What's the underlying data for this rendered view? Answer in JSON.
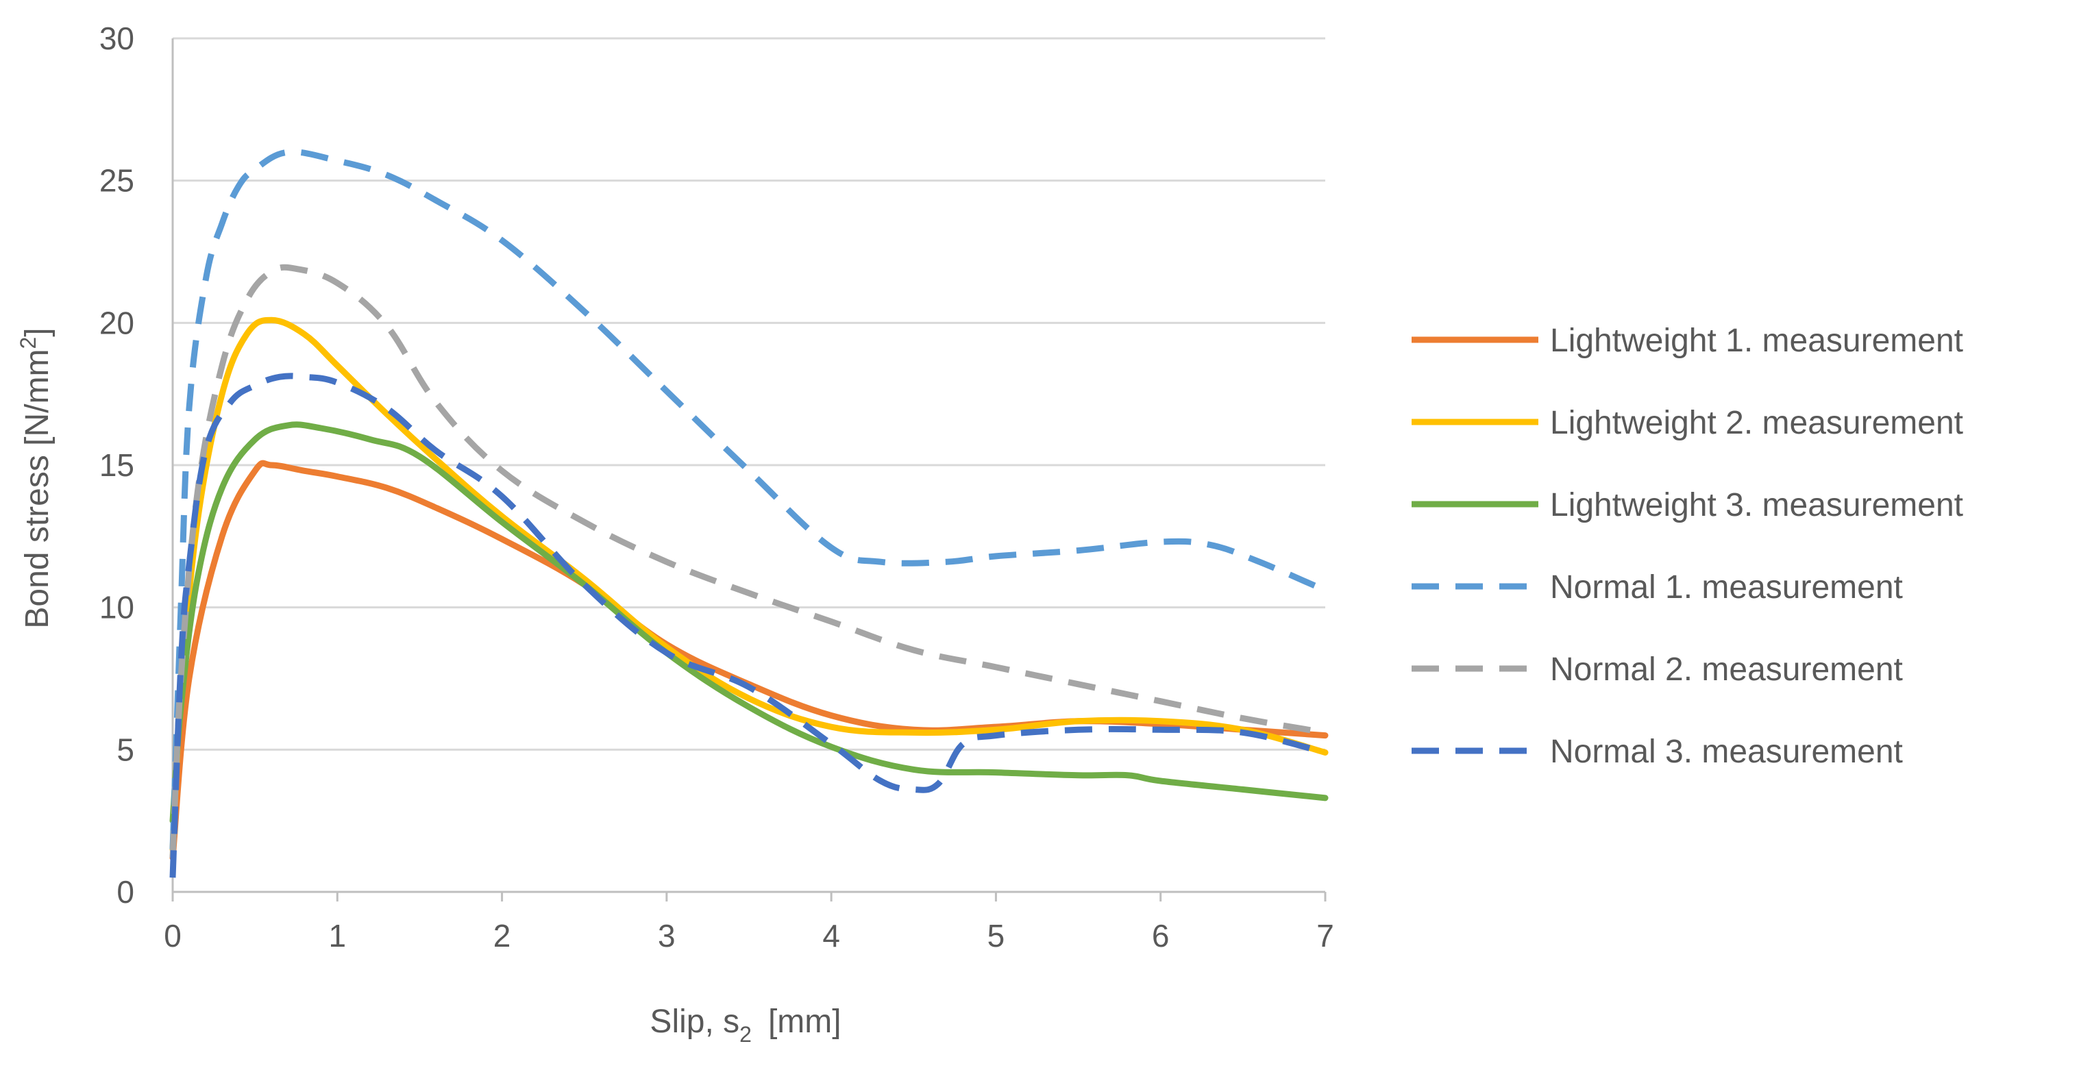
{
  "chart_data": {
    "type": "line",
    "title": "",
    "xlabel_main": "Slip, s",
    "xlabel_sub": "2",
    "xlabel_unit": "[mm]",
    "ylabel_main": "Bond stress [N/mm",
    "ylabel_sup": "2",
    "ylabel_end": "]",
    "xlim": [
      0,
      7
    ],
    "ylim": [
      0,
      30
    ],
    "xticks": [
      "0",
      "1",
      "2",
      "3",
      "4",
      "5",
      "6",
      "7"
    ],
    "yticks": [
      "0",
      "5",
      "10",
      "15",
      "20",
      "25",
      "30"
    ],
    "grid": "horizontal",
    "legend_position": "right",
    "series": [
      {
        "name": "Lightweight 1. measurement",
        "color": "#ED7D31",
        "style": "solid",
        "x": [
          0,
          0.1,
          0.3,
          0.5,
          0.6,
          0.8,
          1.0,
          1.3,
          1.6,
          2.0,
          2.5,
          3.0,
          3.5,
          4.0,
          4.5,
          5.0,
          5.5,
          6.0,
          6.5,
          7.0
        ],
        "y": [
          1.2,
          7.5,
          12.5,
          14.8,
          15.0,
          14.8,
          14.6,
          14.2,
          13.5,
          12.4,
          10.8,
          8.7,
          7.3,
          6.2,
          5.7,
          5.8,
          6.0,
          5.9,
          5.7,
          5.5
        ]
      },
      {
        "name": "Lightweight 2. measurement",
        "color": "#FFC000",
        "style": "solid",
        "x": [
          0,
          0.05,
          0.15,
          0.3,
          0.45,
          0.6,
          0.8,
          1.0,
          1.3,
          1.6,
          2.0,
          2.5,
          3.0,
          3.5,
          4.0,
          4.5,
          5.0,
          5.5,
          6.0,
          6.5,
          7.0
        ],
        "y": [
          1.5,
          7.0,
          13.0,
          17.5,
          19.6,
          20.1,
          19.6,
          18.5,
          16.8,
          15.2,
          13.2,
          11.0,
          8.6,
          6.8,
          5.8,
          5.6,
          5.7,
          6.0,
          6.0,
          5.7,
          4.9
        ]
      },
      {
        "name": "Lightweight 3. measurement",
        "color": "#70AD47",
        "style": "solid",
        "x": [
          0,
          0.05,
          0.15,
          0.3,
          0.5,
          0.7,
          0.9,
          1.2,
          1.5,
          2.0,
          2.5,
          3.0,
          3.5,
          4.0,
          4.5,
          5.0,
          5.5,
          5.8,
          6.0,
          6.5,
          7.0
        ],
        "y": [
          2.5,
          6.5,
          11.0,
          14.2,
          15.9,
          16.4,
          16.3,
          15.9,
          15.3,
          13.0,
          10.8,
          8.4,
          6.5,
          5.1,
          4.3,
          4.2,
          4.1,
          4.1,
          3.9,
          3.6,
          3.3
        ]
      },
      {
        "name": "Normal 1. measurement",
        "color": "#5B9BD5",
        "style": "dashed",
        "x": [
          0,
          0.05,
          0.1,
          0.2,
          0.3,
          0.4,
          0.5,
          0.7,
          1.0,
          1.3,
          1.6,
          2.0,
          2.5,
          3.0,
          3.5,
          4.0,
          4.3,
          4.7,
          5.0,
          5.5,
          6.0,
          6.3,
          6.6,
          7.0
        ],
        "y": [
          1.5,
          10.0,
          17.0,
          21.5,
          23.5,
          24.8,
          25.4,
          26.0,
          25.7,
          25.2,
          24.3,
          22.9,
          20.4,
          17.6,
          14.8,
          12.1,
          11.6,
          11.6,
          11.8,
          12.0,
          12.3,
          12.2,
          11.6,
          10.6
        ]
      },
      {
        "name": "Normal 2. measurement",
        "color": "#A5A5A5",
        "style": "dashed",
        "x": [
          0,
          0.05,
          0.15,
          0.3,
          0.45,
          0.6,
          0.75,
          1.0,
          1.3,
          1.6,
          2.0,
          2.5,
          3.0,
          3.5,
          4.0,
          4.5,
          5.0,
          5.5,
          6.0,
          6.5,
          7.0
        ],
        "y": [
          1.2,
          7.5,
          14.0,
          18.5,
          20.8,
          21.8,
          21.9,
          21.4,
          19.9,
          17.2,
          14.8,
          13.0,
          11.6,
          10.5,
          9.5,
          8.5,
          7.9,
          7.3,
          6.7,
          6.1,
          5.6
        ]
      },
      {
        "name": "Normal 3. measurement",
        "color": "#4472C4",
        "style": "dashed",
        "x": [
          0,
          0.05,
          0.1,
          0.2,
          0.35,
          0.5,
          0.65,
          0.8,
          1.0,
          1.3,
          1.6,
          2.0,
          2.5,
          3.0,
          3.5,
          4.0,
          4.3,
          4.5,
          4.65,
          4.8,
          5.0,
          5.5,
          6.0,
          6.5,
          7.0
        ],
        "y": [
          0.5,
          8.0,
          11.5,
          15.5,
          17.2,
          17.8,
          18.1,
          18.1,
          17.9,
          17.0,
          15.5,
          13.9,
          10.8,
          8.4,
          7.2,
          5.2,
          3.9,
          3.6,
          3.8,
          5.2,
          5.5,
          5.7,
          5.7,
          5.6,
          4.9
        ]
      }
    ]
  }
}
